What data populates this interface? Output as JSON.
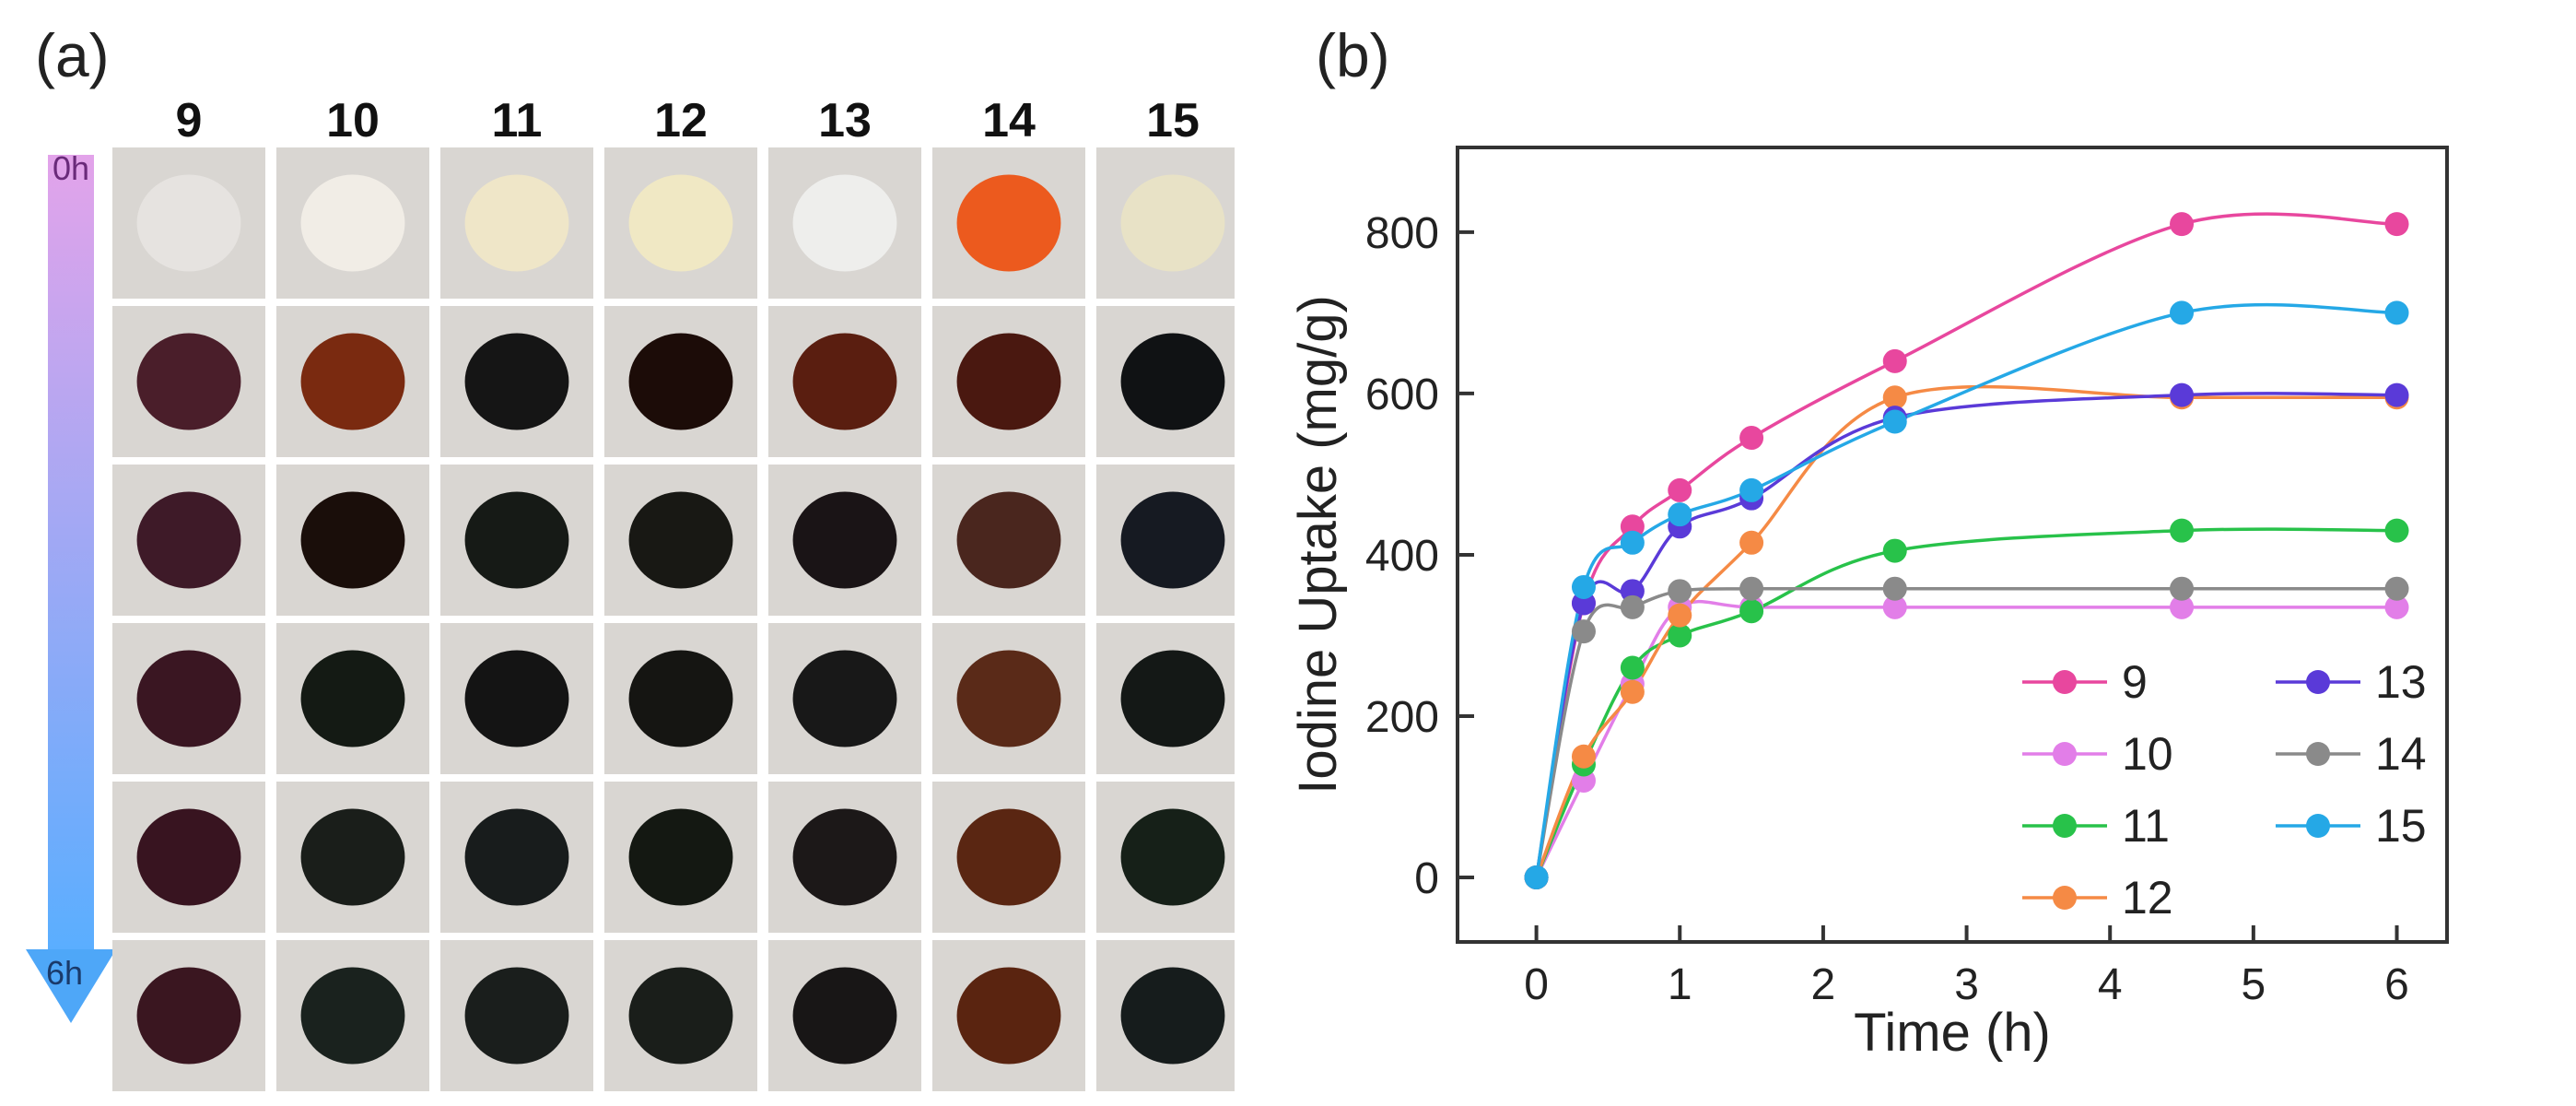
{
  "panels": {
    "a_label": "(a)",
    "b_label": "(b)"
  },
  "photo_grid": {
    "columns": [
      "9",
      "10",
      "11",
      "12",
      "13",
      "14",
      "15"
    ],
    "time_arrow": {
      "start_label": "0h",
      "end_label": "6h"
    },
    "swatches": [
      [
        "#e6e3e0",
        "#f1ede6",
        "#efe6c8",
        "#f0e8c4",
        "#eeeeec",
        "#ec5a1e",
        "#e8e2c6"
      ],
      [
        "#4a1e2a",
        "#7a2a10",
        "#151515",
        "#1c0c08",
        "#5a1e10",
        "#4a1810",
        "#101214"
      ],
      [
        "#3e1a28",
        "#1a0e0a",
        "#161a16",
        "#181814",
        "#1a1416",
        "#4a261e",
        "#161a22"
      ],
      [
        "#3a1622",
        "#141a14",
        "#141414",
        "#151512",
        "#181818",
        "#5a2a18",
        "#141816"
      ],
      [
        "#381420",
        "#1a1e1a",
        "#181c1c",
        "#141812",
        "#1c1818",
        "#5a2612",
        "#162018"
      ],
      [
        "#3a1620",
        "#1a221e",
        "#1a1e1c",
        "#1a1e1a",
        "#181616",
        "#5a2410",
        "#161c1c"
      ]
    ]
  },
  "chart_data": {
    "type": "line",
    "xlabel": "Time (h)",
    "ylabel": "Iodine Uptake (mg/g)",
    "xlim": [
      -0.55,
      6.35
    ],
    "ylim": [
      -80,
      905
    ],
    "xticks": [
      0,
      1,
      2,
      3,
      4,
      5,
      6
    ],
    "yticks": [
      0,
      200,
      400,
      600,
      800
    ],
    "legend_position": "bottom-right",
    "series": [
      {
        "name": "9",
        "color": "#e8479e",
        "x": [
          0,
          0.33,
          0.67,
          1,
          1.5,
          2.5,
          4.5,
          6
        ],
        "y": [
          0,
          340,
          435,
          480,
          545,
          640,
          810,
          810
        ]
      },
      {
        "name": "10",
        "color": "#e27ee8",
        "x": [
          0,
          0.33,
          0.67,
          1,
          1.5,
          2.5,
          4.5,
          6
        ],
        "y": [
          0,
          120,
          240,
          335,
          335,
          335,
          335,
          335
        ]
      },
      {
        "name": "11",
        "color": "#28c24a",
        "x": [
          0,
          0.33,
          0.67,
          1,
          1.5,
          2.5,
          4.5,
          6
        ],
        "y": [
          0,
          140,
          260,
          300,
          330,
          405,
          430,
          430
        ]
      },
      {
        "name": "12",
        "color": "#f58a45",
        "x": [
          0,
          0.33,
          0.67,
          1,
          1.5,
          2.5,
          4.5,
          6
        ],
        "y": [
          0,
          150,
          230,
          325,
          415,
          595,
          595,
          595
        ]
      },
      {
        "name": "13",
        "color": "#5a3ad8",
        "x": [
          0,
          0.33,
          0.67,
          1,
          1.5,
          2.5,
          4.5,
          6
        ],
        "y": [
          0,
          340,
          355,
          435,
          470,
          570,
          598,
          598
        ]
      },
      {
        "name": "14",
        "color": "#8a8a8a",
        "x": [
          0,
          0.33,
          0.67,
          1,
          1.5,
          2.5,
          4.5,
          6
        ],
        "y": [
          0,
          305,
          335,
          355,
          358,
          358,
          358,
          358
        ]
      },
      {
        "name": "15",
        "color": "#25a8e6",
        "x": [
          0,
          0.33,
          0.67,
          1,
          1.5,
          2.5,
          4.5,
          6
        ],
        "y": [
          0,
          360,
          415,
          450,
          480,
          565,
          700,
          700
        ]
      }
    ]
  }
}
